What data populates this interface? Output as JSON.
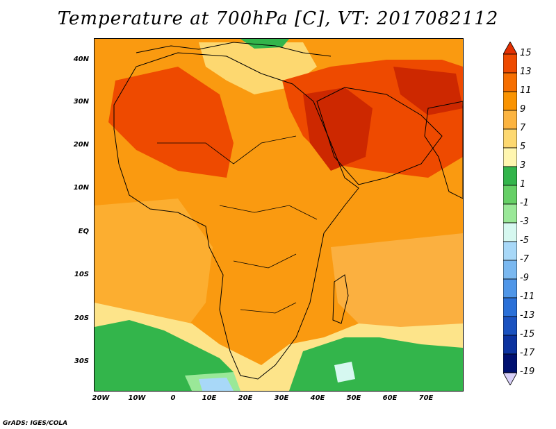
{
  "title": "Temperature at 700hPa [C], VT: 2017082112",
  "credit": "GrADS: IGES/COLA",
  "lat_labels": [
    "40N",
    "30N",
    "20N",
    "10N",
    "EQ",
    "10S",
    "20S",
    "30S"
  ],
  "lon_labels": [
    "20W",
    "10W",
    "0",
    "10E",
    "20E",
    "30E",
    "40E",
    "50E",
    "60E",
    "70E"
  ],
  "colorbar": {
    "levels": [
      "15",
      "13",
      "11",
      "9",
      "7",
      "5",
      "3",
      "1",
      "-1",
      "-3",
      "-5",
      "-7",
      "-9",
      "-11",
      "-13",
      "-15",
      "-17",
      "-19"
    ],
    "colors": [
      "#e32f00",
      "#ee4a00",
      "#f66e00",
      "#fa9300",
      "#fcb440",
      "#fdd870",
      "#fff6b0",
      "#33b54b",
      "#66d066",
      "#9ae898",
      "#d6f8f0",
      "#a8d8f8",
      "#7ab8f0",
      "#4f96e8",
      "#2a70d8",
      "#1a52c0",
      "#0c33a0",
      "#001070",
      "#d8d0f8"
    ]
  },
  "colors": {
    "land_hot": "#cd2800",
    "sea_warm": "#fa9600",
    "cool_green": "#3dbd4f"
  }
}
